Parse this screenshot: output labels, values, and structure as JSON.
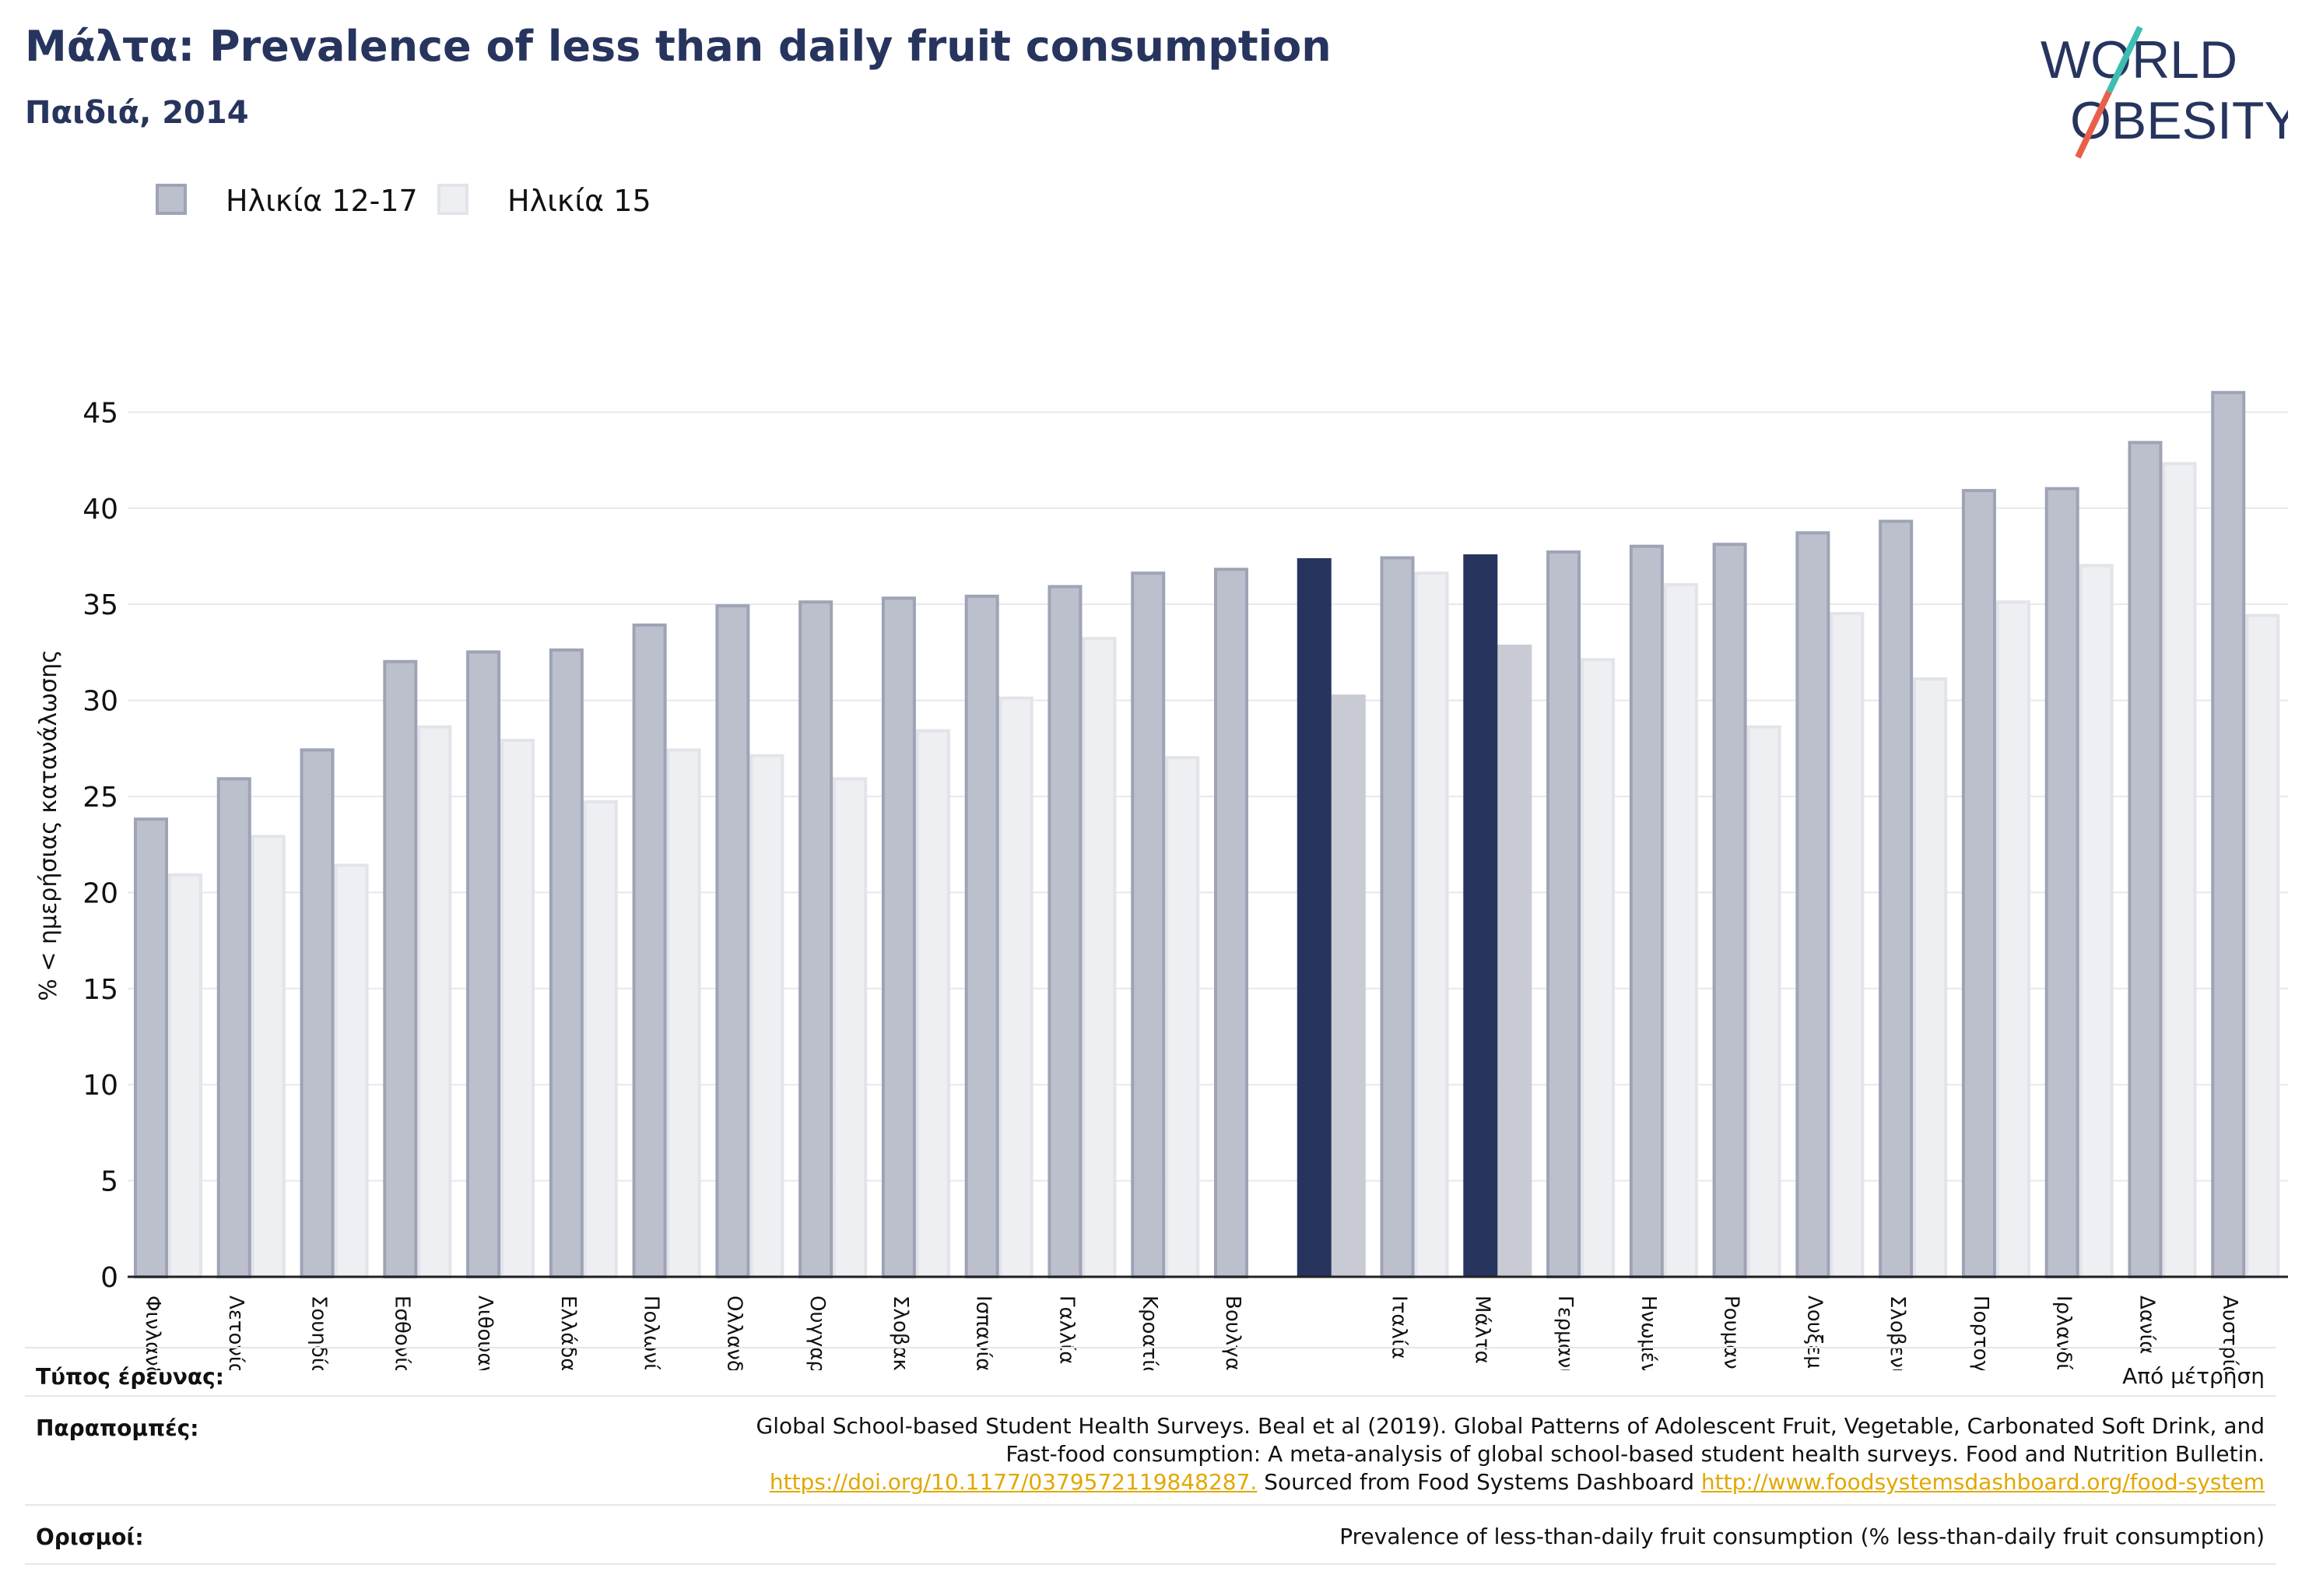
{
  "header": {
    "title": "Μάλτα: Prevalence of less than daily fruit consumption",
    "subtitle": "Παιδιά, 2014"
  },
  "logo": {
    "line1": "WORLD",
    "line2": "OBESITY",
    "accent_teal": "#3bbfb0",
    "accent_red": "#e8604a",
    "text_color": "#27345e"
  },
  "legend": [
    {
      "label": "Ηλικία 12-17",
      "color": "#bcc0cd",
      "border": "#9ea3b6"
    },
    {
      "label": "Ηλικία 15",
      "color": "#eeeff3",
      "border": "#e2e4ea"
    }
  ],
  "chart_data": {
    "type": "bar",
    "ylabel": "% < ημερήσιας κατανάλωσης",
    "ylim": [
      0,
      47
    ],
    "yticks": [
      0,
      5,
      10,
      15,
      20,
      25,
      30,
      35,
      40,
      45
    ],
    "grid": true,
    "categories": [
      "Φινλανδία",
      "Λετονία",
      "Σουηδία",
      "Εσθονία",
      "Λιθουανία",
      "Ελλάδα",
      "Πολωνία",
      "Ολλανδία",
      "Ουγγαρία",
      "Σλοβακία",
      "Ισπανία",
      "Γαλλία",
      "Κροατία",
      "Βουλγαρία",
      "",
      "Ιταλία",
      "Μάλτα",
      "Γερμανία",
      "Ηνωμένο Βασίλειο",
      "Ρουμανία",
      "Λουξεμβούργο",
      "Σλοβενία",
      "Πορτογαλία",
      "Ιρλανδία",
      "Δανία",
      "Αυστρία"
    ],
    "highlight_indices": [
      14,
      16
    ],
    "highlight_colors": {
      "primary": "#27345e",
      "secondary": "#c8cad4"
    },
    "series": [
      {
        "name": "Ηλικία 12-17",
        "values": [
          23.9,
          26.0,
          27.5,
          32.1,
          32.6,
          32.7,
          34.0,
          35.0,
          35.2,
          35.4,
          35.5,
          36.0,
          36.7,
          36.9,
          37.4,
          37.5,
          37.6,
          37.8,
          38.1,
          38.2,
          38.8,
          39.4,
          41.0,
          41.1,
          43.5,
          46.1
        ]
      },
      {
        "name": "Ηλικία 15",
        "values": [
          21.0,
          23.0,
          21.5,
          28.7,
          28.0,
          24.8,
          27.5,
          27.2,
          26.0,
          28.5,
          30.2,
          33.3,
          27.1,
          null,
          30.3,
          36.7,
          32.9,
          32.2,
          36.1,
          28.7,
          34.6,
          31.2,
          35.2,
          37.1,
          42.4,
          34.5
        ]
      }
    ]
  },
  "footer": {
    "survey_type_label": "Τύπος έρευνας:",
    "survey_type_value": "Από μέτρηση",
    "references_label": "Παραπομπές:",
    "references_line1": "Global School-based Student Health Surveys. Beal et al (2019). Global Patterns of Adolescent Fruit, Vegetable, Carbonated Soft Drink, and",
    "references_line2": "Fast-food consumption: A meta-analysis of global school-based student health surveys. Food and Nutrition Bulletin.",
    "references_link1": "https://doi.org/10.1177/0379572119848287.",
    "references_mid": " Sourced from Food Systems Dashboard ",
    "references_link2": "http://www.foodsystemsdashboard.org/food-system",
    "definitions_label": "Ορισμοί:",
    "definitions_value": "Prevalence of less-than-daily fruit consumption (% less-than-daily fruit consumption)"
  }
}
